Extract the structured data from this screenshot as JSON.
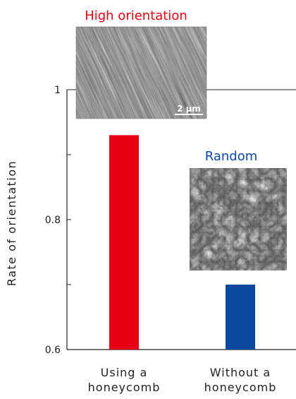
{
  "chart_data": {
    "type": "bar",
    "categories": [
      [
        "Using a",
        "honeycomb"
      ],
      [
        "Without a",
        "honeycomb"
      ]
    ],
    "values": [
      0.93,
      0.7
    ],
    "bar_colors": [
      "#e60012",
      "#0a49a0"
    ],
    "ylabel": "Rate of orientation",
    "ylim": [
      0.6,
      1.0
    ],
    "yticks": [
      "0.6",
      "0.8",
      "1"
    ],
    "annotations": [
      {
        "text": "High orientation",
        "color": "#e60012"
      },
      {
        "text": "Random",
        "color": "#0a49a0"
      }
    ],
    "inset_scale_bar": "2 μm",
    "grid": false
  }
}
